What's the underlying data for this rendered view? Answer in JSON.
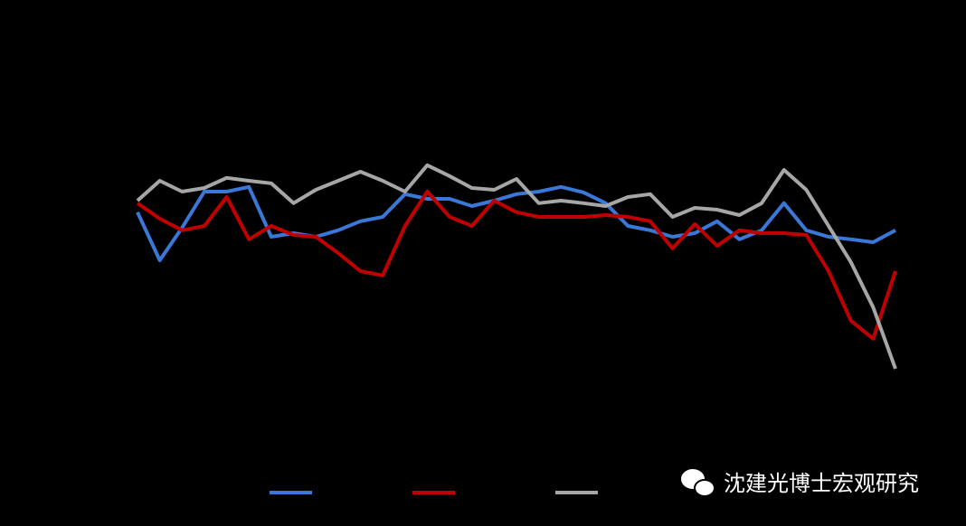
{
  "chart_data": {
    "type": "line",
    "x": [
      0,
      1,
      2,
      3,
      4,
      5,
      6,
      7,
      8,
      9,
      10,
      11,
      12,
      13,
      14,
      15,
      16,
      17,
      18,
      19,
      20,
      21,
      22,
      23,
      24,
      25,
      26,
      27,
      28,
      29,
      30,
      31,
      32,
      33,
      34
    ],
    "xlim": [
      0,
      34
    ],
    "ylim": [
      0,
      100
    ],
    "series": [
      {
        "color": "#3a78d8",
        "values": [
          61.3,
          48,
          57,
          67,
          67,
          68.3,
          54.5,
          55.5,
          54.5,
          56.3,
          58.8,
          60,
          66.3,
          65,
          65,
          63,
          64.5,
          66.3,
          67,
          68.3,
          66.8,
          63.8,
          57.5,
          56.3,
          54.5,
          55.5,
          58.8,
          53.8,
          56.3,
          63.8,
          56.3,
          54.5,
          53.8,
          53,
          56.3
        ]
      },
      {
        "color": "#c00000",
        "values": [
          63.8,
          59.5,
          56.3,
          57.5,
          65.5,
          53.8,
          57.5,
          55,
          54.5,
          50,
          45,
          43.8,
          57.5,
          67,
          60,
          57.5,
          64.5,
          61.3,
          60,
          60,
          60,
          60.5,
          60,
          58.8,
          51.3,
          58,
          52,
          56.3,
          55.5,
          55.5,
          55,
          45,
          31.3,
          26.3,
          45
        ]
      },
      {
        "color": "#a6a6a6",
        "values": [
          64.5,
          70,
          67,
          68,
          70.8,
          70,
          69.3,
          63.8,
          67.5,
          70,
          72.5,
          70,
          67,
          74.3,
          71.3,
          68,
          67.5,
          70.5,
          63.8,
          64.5,
          63.8,
          63,
          65.5,
          66.3,
          60,
          62.5,
          62,
          60.5,
          63.8,
          73,
          67.5,
          57.5,
          47.5,
          35,
          18
        ]
      }
    ]
  },
  "watermark": "沈建光博士宏观研究"
}
